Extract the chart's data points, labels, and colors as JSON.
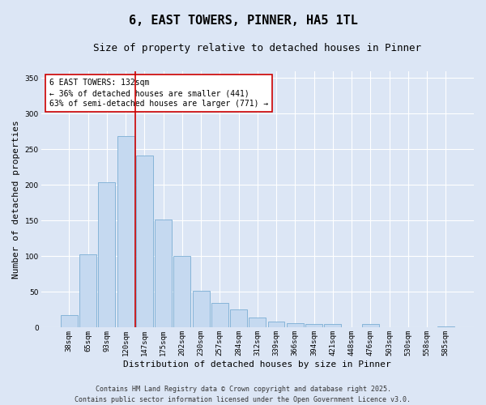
{
  "title_line1": "6, EAST TOWERS, PINNER, HA5 1TL",
  "title_line2": "Size of property relative to detached houses in Pinner",
  "xlabel": "Distribution of detached houses by size in Pinner",
  "ylabel": "Number of detached properties",
  "categories": [
    "38sqm",
    "65sqm",
    "93sqm",
    "120sqm",
    "147sqm",
    "175sqm",
    "202sqm",
    "230sqm",
    "257sqm",
    "284sqm",
    "312sqm",
    "339sqm",
    "366sqm",
    "394sqm",
    "421sqm",
    "448sqm",
    "476sqm",
    "503sqm",
    "530sqm",
    "558sqm",
    "585sqm"
  ],
  "values": [
    17,
    103,
    204,
    269,
    241,
    152,
    100,
    52,
    35,
    25,
    14,
    8,
    6,
    5,
    5,
    0,
    5,
    0,
    0,
    0,
    2
  ],
  "bar_color": "#c5d9f0",
  "bar_edge_color": "#7badd4",
  "background_color": "#dce6f5",
  "plot_bg_color": "#dce6f5",
  "grid_color": "#ffffff",
  "annotation_text": "6 EAST TOWERS: 132sqm\n← 36% of detached houses are smaller (441)\n63% of semi-detached houses are larger (771) →",
  "annotation_box_color": "#ffffff",
  "annotation_box_edge_color": "#cc0000",
  "vline_color": "#cc0000",
  "vline_x": 3.5,
  "ylim": [
    0,
    360
  ],
  "yticks": [
    0,
    50,
    100,
    150,
    200,
    250,
    300,
    350
  ],
  "footer_line1": "Contains HM Land Registry data © Crown copyright and database right 2025.",
  "footer_line2": "Contains public sector information licensed under the Open Government Licence v3.0.",
  "title_fontsize": 11,
  "subtitle_fontsize": 9,
  "axis_label_fontsize": 8,
  "tick_fontsize": 6.5,
  "annotation_fontsize": 7,
  "footer_fontsize": 6,
  "ylabel_fontsize": 8
}
